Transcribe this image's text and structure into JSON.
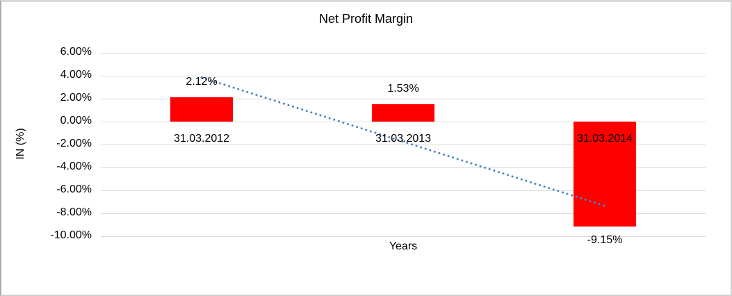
{
  "chart_data": {
    "type": "bar",
    "title": "Net Profit Margin",
    "xlabel": "Years",
    "ylabel": "IN (%)",
    "categories": [
      "31.03.2012",
      "31.03.2013",
      "31.03.2014"
    ],
    "values": [
      2.12,
      1.53,
      -9.15
    ],
    "value_labels": [
      "2.12%",
      "1.53%",
      "-9.15%"
    ],
    "ylim": [
      -10,
      6
    ],
    "yticks": [
      {
        "v": 6,
        "label": "6.00%"
      },
      {
        "v": 4,
        "label": "4.00%"
      },
      {
        "v": 2,
        "label": "2.00%"
      },
      {
        "v": 0,
        "label": "0.00%"
      },
      {
        "v": -2,
        "label": "-2.00%"
      },
      {
        "v": -4,
        "label": "-4.00%"
      },
      {
        "v": -6,
        "label": "-6.00%"
      },
      {
        "v": -8,
        "label": "-8.00%"
      },
      {
        "v": -10,
        "label": "-10.00%"
      }
    ],
    "grid": true,
    "legend": false,
    "bar_color": "#ff0000",
    "gridline_color": "#d9d9d9",
    "trendline": {
      "type": "linear",
      "style": "dotted",
      "color": "#4a86c8",
      "start_value": 3.85,
      "end_value": -7.35
    }
  }
}
